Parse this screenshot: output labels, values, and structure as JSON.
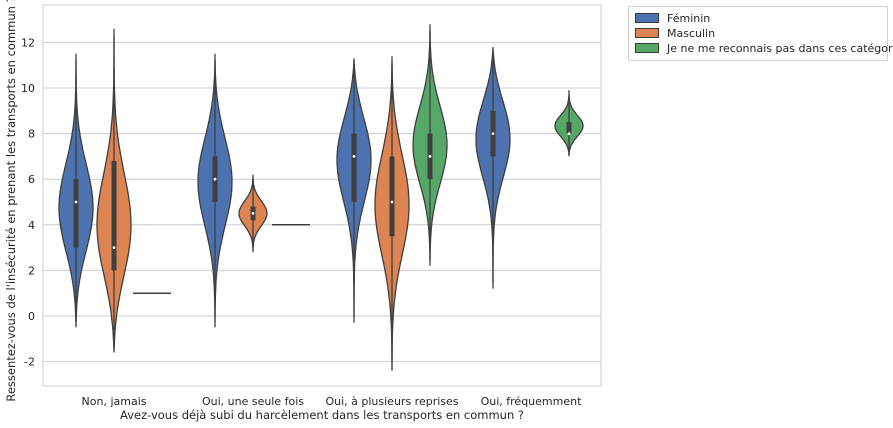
{
  "chart_data": {
    "type": "violin",
    "xlabel": "Avez-vous déjà subi du harcèlement dans les transports en commun ?",
    "ylabel": "Ressentez-vous de l'insécurité en prenant les transports en commun ?",
    "categories": [
      "Non, jamais",
      "Oui, une seule fois",
      "Oui, à plusieurs reprises",
      "Oui, fréquemment"
    ],
    "yticks": [
      -2,
      0,
      2,
      4,
      6,
      8,
      10,
      12
    ],
    "ylim": [
      -3.2,
      13.6
    ],
    "grid": true,
    "legend_position": "outside top-right",
    "series": [
      {
        "name": "Féminin",
        "color": "#4c72b0",
        "groups": [
          {
            "category": "Non, jamais",
            "min": -0.5,
            "max": 11.5,
            "q1": 3,
            "median": 5,
            "q3": 6,
            "density_peak": 4.5
          },
          {
            "category": "Oui, une seule fois",
            "min": -0.5,
            "max": 11.5,
            "q1": 5,
            "median": 6,
            "q3": 7,
            "density_peak": 6
          },
          {
            "category": "Oui, à plusieurs reprises",
            "min": -0.3,
            "max": 11.3,
            "q1": 5,
            "median": 7,
            "q3": 8,
            "density_peak": 7.3
          },
          {
            "category": "Oui, fréquemment",
            "min": 1.2,
            "max": 11.8,
            "q1": 7,
            "median": 8,
            "q3": 9,
            "density_peak": 8.2
          }
        ]
      },
      {
        "name": "Masculin",
        "color": "#dd8452",
        "groups": [
          {
            "category": "Non, jamais",
            "min": -1.6,
            "max": 12.6,
            "q1": 2,
            "median": 3,
            "q3": 6.8,
            "density_peak": 3.5
          },
          {
            "category": "Oui, une seule fois",
            "min": 2.8,
            "max": 6.2,
            "q1": 4.2,
            "median": 4.5,
            "q3": 4.8,
            "density_peak": 4.5
          },
          {
            "category": "Oui, à plusieurs reprises",
            "min": -2.4,
            "max": 11.4,
            "q1": 3.5,
            "median": 5,
            "q3": 7,
            "density_peak": 5
          }
        ]
      },
      {
        "name": "Je ne me reconnais pas dans ces catégories",
        "color": "#55a868",
        "groups": [
          {
            "category": "Non, jamais",
            "min": 1,
            "max": 1,
            "q1": 1,
            "median": 1,
            "q3": 1,
            "density_peak": 1
          },
          {
            "category": "Oui, une seule fois",
            "min": 4,
            "max": 4,
            "q1": 4,
            "median": 4,
            "q3": 4,
            "density_peak": 4
          },
          {
            "category": "Oui, à plusieurs reprises",
            "min": 2.2,
            "max": 12.8,
            "q1": 6,
            "median": 7,
            "q3": 8,
            "density_peak": 7.5
          },
          {
            "category": "Oui, fréquemment",
            "min": 7,
            "max": 9.9,
            "q1": 8,
            "median": 8,
            "q3": 8.5,
            "density_peak": 8.3
          }
        ]
      }
    ]
  }
}
